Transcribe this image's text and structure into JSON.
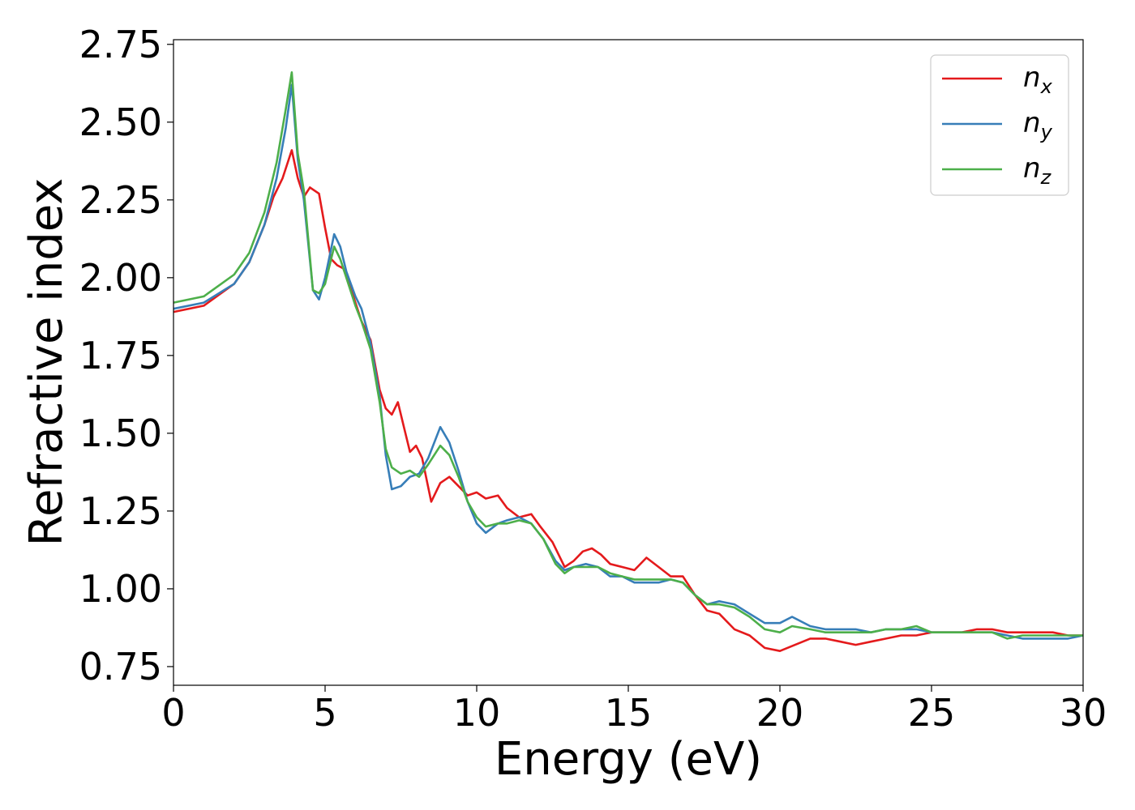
{
  "chart_data": {
    "type": "line",
    "title": "",
    "xlabel": "Energy (eV)",
    "ylabel": "Refractive index",
    "xlim": [
      0,
      30
    ],
    "ylim": [
      0.69,
      2.765
    ],
    "xticks": [
      0,
      5,
      10,
      15,
      20,
      25,
      30
    ],
    "xtick_labels": [
      "0",
      "5",
      "10",
      "15",
      "20",
      "25",
      "30"
    ],
    "yticks": [
      0.75,
      1.0,
      1.25,
      1.5,
      1.75,
      2.0,
      2.25,
      2.5,
      2.75
    ],
    "ytick_labels": [
      "0.75",
      "1.00",
      "1.25",
      "1.50",
      "1.75",
      "2.00",
      "2.25",
      "2.50",
      "2.75"
    ],
    "grid": false,
    "legend_position": "top-right",
    "series": [
      {
        "name": "n_x",
        "base": "n",
        "sub": "x",
        "color": "#e41a1c",
        "points": [
          [
            0,
            1.89
          ],
          [
            1,
            1.91
          ],
          [
            2,
            1.98
          ],
          [
            2.5,
            2.05
          ],
          [
            3,
            2.17
          ],
          [
            3.3,
            2.26
          ],
          [
            3.6,
            2.32
          ],
          [
            3.9,
            2.41
          ],
          [
            4.1,
            2.32
          ],
          [
            4.3,
            2.26
          ],
          [
            4.5,
            2.29
          ],
          [
            4.8,
            2.27
          ],
          [
            5.0,
            2.16
          ],
          [
            5.2,
            2.06
          ],
          [
            5.4,
            2.04
          ],
          [
            5.6,
            2.03
          ],
          [
            5.8,
            1.98
          ],
          [
            6.0,
            1.92
          ],
          [
            6.2,
            1.86
          ],
          [
            6.5,
            1.8
          ],
          [
            6.8,
            1.64
          ],
          [
            7.0,
            1.58
          ],
          [
            7.2,
            1.56
          ],
          [
            7.4,
            1.6
          ],
          [
            7.6,
            1.52
          ],
          [
            7.8,
            1.44
          ],
          [
            8.0,
            1.46
          ],
          [
            8.2,
            1.42
          ],
          [
            8.5,
            1.28
          ],
          [
            8.8,
            1.34
          ],
          [
            9.1,
            1.36
          ],
          [
            9.4,
            1.33
          ],
          [
            9.7,
            1.3
          ],
          [
            10.0,
            1.31
          ],
          [
            10.3,
            1.29
          ],
          [
            10.7,
            1.3
          ],
          [
            11.0,
            1.26
          ],
          [
            11.4,
            1.23
          ],
          [
            11.8,
            1.24
          ],
          [
            12.1,
            1.2
          ],
          [
            12.5,
            1.15
          ],
          [
            12.9,
            1.07
          ],
          [
            13.2,
            1.09
          ],
          [
            13.5,
            1.12
          ],
          [
            13.8,
            1.13
          ],
          [
            14.1,
            1.11
          ],
          [
            14.4,
            1.08
          ],
          [
            14.8,
            1.07
          ],
          [
            15.2,
            1.06
          ],
          [
            15.6,
            1.1
          ],
          [
            16.0,
            1.07
          ],
          [
            16.4,
            1.04
          ],
          [
            16.8,
            1.04
          ],
          [
            17.2,
            0.98
          ],
          [
            17.6,
            0.93
          ],
          [
            18.0,
            0.92
          ],
          [
            18.5,
            0.87
          ],
          [
            19.0,
            0.85
          ],
          [
            19.5,
            0.81
          ],
          [
            20.0,
            0.8
          ],
          [
            20.5,
            0.82
          ],
          [
            21.0,
            0.84
          ],
          [
            21.5,
            0.84
          ],
          [
            22.0,
            0.83
          ],
          [
            22.5,
            0.82
          ],
          [
            23.0,
            0.83
          ],
          [
            23.5,
            0.84
          ],
          [
            24.0,
            0.85
          ],
          [
            24.5,
            0.85
          ],
          [
            25.0,
            0.86
          ],
          [
            25.5,
            0.86
          ],
          [
            26.0,
            0.86
          ],
          [
            26.5,
            0.87
          ],
          [
            27.0,
            0.87
          ],
          [
            27.5,
            0.86
          ],
          [
            28.0,
            0.86
          ],
          [
            28.5,
            0.86
          ],
          [
            29.0,
            0.86
          ],
          [
            29.5,
            0.85
          ],
          [
            30.0,
            0.85
          ]
        ]
      },
      {
        "name": "n_y",
        "base": "n",
        "sub": "y",
        "color": "#377eb8",
        "points": [
          [
            0,
            1.9
          ],
          [
            1,
            1.92
          ],
          [
            2,
            1.98
          ],
          [
            2.5,
            2.05
          ],
          [
            3,
            2.17
          ],
          [
            3.4,
            2.32
          ],
          [
            3.7,
            2.48
          ],
          [
            3.9,
            2.62
          ],
          [
            4.1,
            2.38
          ],
          [
            4.3,
            2.25
          ],
          [
            4.6,
            1.96
          ],
          [
            4.8,
            1.93
          ],
          [
            5.0,
            2.0
          ],
          [
            5.3,
            2.14
          ],
          [
            5.5,
            2.1
          ],
          [
            5.7,
            2.02
          ],
          [
            6.0,
            1.94
          ],
          [
            6.2,
            1.9
          ],
          [
            6.5,
            1.79
          ],
          [
            6.8,
            1.62
          ],
          [
            7.0,
            1.43
          ],
          [
            7.2,
            1.32
          ],
          [
            7.5,
            1.33
          ],
          [
            7.8,
            1.36
          ],
          [
            8.1,
            1.37
          ],
          [
            8.4,
            1.42
          ],
          [
            8.8,
            1.52
          ],
          [
            9.1,
            1.47
          ],
          [
            9.4,
            1.38
          ],
          [
            9.7,
            1.28
          ],
          [
            10.0,
            1.21
          ],
          [
            10.3,
            1.18
          ],
          [
            10.7,
            1.21
          ],
          [
            11.0,
            1.22
          ],
          [
            11.4,
            1.23
          ],
          [
            11.8,
            1.21
          ],
          [
            12.2,
            1.16
          ],
          [
            12.6,
            1.09
          ],
          [
            12.9,
            1.06
          ],
          [
            13.2,
            1.07
          ],
          [
            13.6,
            1.08
          ],
          [
            14.0,
            1.07
          ],
          [
            14.4,
            1.04
          ],
          [
            14.8,
            1.04
          ],
          [
            15.2,
            1.02
          ],
          [
            15.6,
            1.02
          ],
          [
            16.0,
            1.02
          ],
          [
            16.4,
            1.03
          ],
          [
            16.8,
            1.02
          ],
          [
            17.2,
            0.98
          ],
          [
            17.6,
            0.95
          ],
          [
            18.0,
            0.96
          ],
          [
            18.5,
            0.95
          ],
          [
            19.0,
            0.92
          ],
          [
            19.5,
            0.89
          ],
          [
            20.0,
            0.89
          ],
          [
            20.4,
            0.91
          ],
          [
            21.0,
            0.88
          ],
          [
            21.5,
            0.87
          ],
          [
            22.0,
            0.87
          ],
          [
            22.5,
            0.87
          ],
          [
            23.0,
            0.86
          ],
          [
            23.5,
            0.87
          ],
          [
            24.0,
            0.87
          ],
          [
            24.5,
            0.87
          ],
          [
            25.0,
            0.86
          ],
          [
            25.5,
            0.86
          ],
          [
            26.0,
            0.86
          ],
          [
            26.5,
            0.86
          ],
          [
            27.0,
            0.86
          ],
          [
            27.5,
            0.85
          ],
          [
            28.0,
            0.84
          ],
          [
            28.5,
            0.84
          ],
          [
            29.0,
            0.84
          ],
          [
            29.5,
            0.84
          ],
          [
            30.0,
            0.85
          ]
        ]
      },
      {
        "name": "n_z",
        "base": "n",
        "sub": "z",
        "color": "#4daf4a",
        "points": [
          [
            0,
            1.92
          ],
          [
            1,
            1.94
          ],
          [
            2,
            2.01
          ],
          [
            2.5,
            2.08
          ],
          [
            3,
            2.21
          ],
          [
            3.4,
            2.37
          ],
          [
            3.7,
            2.54
          ],
          [
            3.9,
            2.66
          ],
          [
            4.1,
            2.4
          ],
          [
            4.3,
            2.28
          ],
          [
            4.6,
            1.96
          ],
          [
            4.8,
            1.95
          ],
          [
            5.0,
            1.98
          ],
          [
            5.3,
            2.1
          ],
          [
            5.5,
            2.06
          ],
          [
            5.7,
            2.0
          ],
          [
            6.0,
            1.91
          ],
          [
            6.2,
            1.86
          ],
          [
            6.5,
            1.77
          ],
          [
            6.8,
            1.6
          ],
          [
            7.0,
            1.45
          ],
          [
            7.2,
            1.39
          ],
          [
            7.5,
            1.37
          ],
          [
            7.8,
            1.38
          ],
          [
            8.1,
            1.36
          ],
          [
            8.4,
            1.4
          ],
          [
            8.8,
            1.46
          ],
          [
            9.1,
            1.43
          ],
          [
            9.4,
            1.36
          ],
          [
            9.7,
            1.28
          ],
          [
            10.0,
            1.23
          ],
          [
            10.3,
            1.2
          ],
          [
            10.7,
            1.21
          ],
          [
            11.0,
            1.21
          ],
          [
            11.4,
            1.22
          ],
          [
            11.8,
            1.21
          ],
          [
            12.2,
            1.16
          ],
          [
            12.6,
            1.08
          ],
          [
            12.9,
            1.05
          ],
          [
            13.2,
            1.07
          ],
          [
            13.6,
            1.07
          ],
          [
            14.0,
            1.07
          ],
          [
            14.4,
            1.05
          ],
          [
            14.8,
            1.04
          ],
          [
            15.2,
            1.03
          ],
          [
            15.6,
            1.03
          ],
          [
            16.0,
            1.03
          ],
          [
            16.4,
            1.03
          ],
          [
            16.8,
            1.02
          ],
          [
            17.2,
            0.98
          ],
          [
            17.6,
            0.95
          ],
          [
            18.0,
            0.95
          ],
          [
            18.5,
            0.94
          ],
          [
            19.0,
            0.91
          ],
          [
            19.5,
            0.87
          ],
          [
            20.0,
            0.86
          ],
          [
            20.4,
            0.88
          ],
          [
            21.0,
            0.87
          ],
          [
            21.5,
            0.86
          ],
          [
            22.0,
            0.86
          ],
          [
            22.5,
            0.86
          ],
          [
            23.0,
            0.86
          ],
          [
            23.5,
            0.87
          ],
          [
            24.0,
            0.87
          ],
          [
            24.5,
            0.88
          ],
          [
            25.0,
            0.86
          ],
          [
            25.5,
            0.86
          ],
          [
            26.0,
            0.86
          ],
          [
            26.5,
            0.86
          ],
          [
            27.0,
            0.86
          ],
          [
            27.5,
            0.84
          ],
          [
            28.0,
            0.85
          ],
          [
            28.5,
            0.85
          ],
          [
            29.0,
            0.85
          ],
          [
            29.5,
            0.85
          ],
          [
            30.0,
            0.85
          ]
        ]
      }
    ]
  }
}
